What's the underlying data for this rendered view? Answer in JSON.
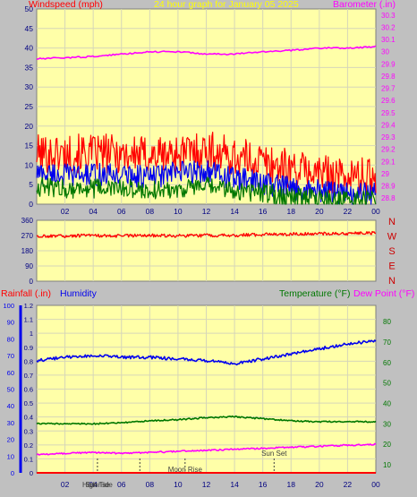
{
  "colors": {
    "background": "#c0c0c0",
    "plot_bg": "#ffffa8",
    "grid": "#d6d6b8",
    "red": "#ff0000",
    "blue": "#0000ee",
    "green": "#007700",
    "magenta": "#ff00ff",
    "yellow": "#ffff00",
    "dark_red": "#cc0000"
  },
  "chart_data": [
    {
      "type": "line",
      "title": "24 hour graph for  January 05 2025",
      "left_label": "Windspeed (mph)",
      "right_label": "Barometer (.in)",
      "x_ticks": [
        "02",
        "04",
        "06",
        "08",
        "10",
        "12",
        "14",
        "16",
        "18",
        "20",
        "22",
        "00"
      ],
      "y_left_ticks": [
        "0",
        "5",
        "10",
        "15",
        "20",
        "25",
        "30",
        "35",
        "40",
        "45",
        "50"
      ],
      "y_left_range": [
        0,
        50
      ],
      "y_right_ticks": [
        "28.8",
        "28.9",
        "29",
        "29.1",
        "29.2",
        "29.3",
        "29.4",
        "29.5",
        "29.6",
        "29.7",
        "29.8",
        "29.9",
        "30",
        "30.1",
        "30.2",
        "30.3"
      ],
      "y_right_range": [
        28.75,
        30.35
      ],
      "grid": true,
      "series": [
        {
          "color_key": "red",
          "axis": "left",
          "x_hours": [
            0,
            2,
            4,
            6,
            8,
            10,
            12,
            14,
            16,
            18,
            20,
            22,
            24
          ],
          "values": [
            13,
            13,
            13,
            13,
            12.5,
            13,
            14,
            12,
            11,
            9,
            8,
            7,
            7
          ]
        },
        {
          "color_key": "blue",
          "axis": "left",
          "x_hours": [
            0,
            2,
            4,
            6,
            8,
            10,
            12,
            14,
            16,
            18,
            20,
            22,
            24
          ],
          "values": [
            8,
            7.5,
            7.5,
            7.5,
            7,
            8,
            8.5,
            6.5,
            5.5,
            4,
            3.5,
            2.5,
            2.5
          ]
        },
        {
          "color_key": "green",
          "axis": "left",
          "x_hours": [
            0,
            2,
            4,
            6,
            8,
            10,
            12,
            14,
            16,
            18,
            20,
            22,
            24
          ],
          "values": [
            4.5,
            4,
            4,
            4,
            3.5,
            4,
            4.5,
            3.5,
            3,
            2,
            1.5,
            1,
            1
          ]
        },
        {
          "color_key": "magenta",
          "axis": "right",
          "x_hours": [
            0,
            2,
            4,
            6,
            8,
            10,
            12,
            14,
            16,
            18,
            20,
            22,
            24
          ],
          "values": [
            29.94,
            29.95,
            29.96,
            29.98,
            30.0,
            30.0,
            29.98,
            29.98,
            30.0,
            30.01,
            30.03,
            30.03,
            30.04
          ]
        }
      ]
    },
    {
      "type": "scatter",
      "x_ticks": [
        "02",
        "04",
        "06",
        "08",
        "10",
        "12",
        "14",
        "16",
        "18",
        "20",
        "22",
        "00"
      ],
      "y_left_ticks": [
        "0",
        "90",
        "180",
        "270",
        "360"
      ],
      "y_range": [
        0,
        360
      ],
      "right_letters": [
        "N",
        "W",
        "S",
        "E",
        "N"
      ],
      "grid": true,
      "series": [
        {
          "color_key": "red",
          "x_hours": [
            0,
            2,
            4,
            6,
            8,
            10,
            12,
            14,
            16,
            18,
            20,
            22,
            24
          ],
          "values": [
            265,
            268,
            270,
            268,
            270,
            268,
            270,
            272,
            275,
            278,
            280,
            282,
            285
          ]
        }
      ]
    },
    {
      "type": "line",
      "left_label": "Rainfall (.in)",
      "left_label2": "Humidity",
      "right_label": "Temperature (°F)",
      "right_label2": "Dew Point (°F)",
      "x_ticks": [
        "02",
        "04",
        "06",
        "08",
        "10",
        "12",
        "14",
        "16",
        "18",
        "20",
        "22",
        "00"
      ],
      "y_left_ticks": [
        "0",
        "10",
        "20",
        "30",
        "40",
        "50",
        "60",
        "70",
        "80",
        "90",
        "100"
      ],
      "y_left_range": [
        0,
        100
      ],
      "y_inner_ticks": [
        "0",
        "0.1",
        "0.2",
        "0.3",
        "0.4",
        "0.5",
        "0.6",
        "0.7",
        "0.8",
        "0.9",
        "1",
        "1.1",
        "1.2"
      ],
      "y_inner_range": [
        0,
        1.2
      ],
      "y_right_ticks": [
        "10",
        "20",
        "30",
        "40",
        "50",
        "60",
        "70",
        "80"
      ],
      "y_right_range": [
        6,
        88
      ],
      "grid": true,
      "annotations": [
        {
          "text": "High Tide",
          "x_hour": 4.3
        },
        {
          "text": "Sunrise",
          "x_hour": 4.3
        },
        {
          "text": "Moon Rise",
          "x_hour": 10.5
        },
        {
          "text": "Sun Set",
          "x_hour": 16.8
        }
      ],
      "series": [
        {
          "color_key": "blue",
          "axis": "left",
          "x_hours": [
            0,
            2,
            4,
            6,
            8,
            10,
            12,
            14,
            16,
            18,
            20,
            22,
            24
          ],
          "values": [
            67,
            69,
            70,
            69,
            69,
            68,
            67,
            65,
            68,
            71,
            74,
            77,
            79
          ]
        },
        {
          "color_key": "green",
          "axis": "right",
          "x_hours": [
            0,
            2,
            4,
            6,
            8,
            10,
            12,
            14,
            16,
            18,
            20,
            22,
            24
          ],
          "values": [
            30,
            30,
            30,
            30.5,
            31.5,
            32,
            33,
            33.5,
            32.5,
            31.5,
            31,
            31,
            31
          ]
        },
        {
          "color_key": "magenta",
          "axis": "right",
          "x_hours": [
            0,
            2,
            4,
            6,
            8,
            10,
            12,
            14,
            16,
            18,
            20,
            22,
            24
          ],
          "values": [
            15,
            15.5,
            16,
            15.5,
            16,
            16.5,
            17,
            17.5,
            18,
            18.5,
            19,
            19.5,
            20
          ]
        },
        {
          "color_key": "red",
          "axis": "inner",
          "x_hours": [
            0,
            24
          ],
          "values": [
            0,
            0
          ]
        }
      ]
    }
  ]
}
